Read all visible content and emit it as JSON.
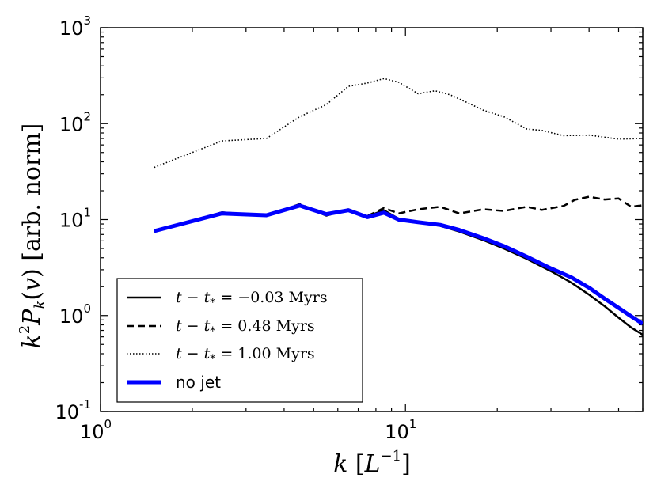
{
  "chart_data": {
    "type": "line",
    "title": "",
    "xlabel": "k [L^-1]",
    "ylabel": "k^2 P_k(v) [arb. norm]",
    "xscale": "log",
    "yscale": "log",
    "xlim": [
      1,
      60
    ],
    "ylim": [
      0.1,
      1000
    ],
    "x_ticks": [
      {
        "base": "10",
        "exp": "0",
        "value": 1
      },
      {
        "base": "10",
        "exp": "1",
        "value": 10
      }
    ],
    "y_ticks": [
      {
        "base": "10",
        "exp": "-1",
        "value": 0.1
      },
      {
        "base": "10",
        "exp": "0",
        "value": 1
      },
      {
        "base": "10",
        "exp": "1",
        "value": 10
      },
      {
        "base": "10",
        "exp": "2",
        "value": 100
      },
      {
        "base": "10",
        "exp": "3",
        "value": 1000
      }
    ],
    "legend_position": "lower-left",
    "series": [
      {
        "name": "t - t_* = -0.03 Myrs",
        "label_main": "t − t",
        "label_sub": "*",
        "label_rest": " = −0.03 Myrs",
        "color": "#000000",
        "style": "solid",
        "x": [
          1.5,
          2.5,
          3.5,
          4.5,
          5.5,
          6.5,
          7.5,
          8.5,
          9.5,
          11,
          13,
          15,
          18,
          21,
          25,
          30,
          35,
          40,
          45,
          50,
          55,
          60
        ],
        "y": [
          7.5,
          11.8,
          11.2,
          14.3,
          11.0,
          12.8,
          10.8,
          12.5,
          10.2,
          9.3,
          8.6,
          7.5,
          6.1,
          5.0,
          3.9,
          2.9,
          2.2,
          1.65,
          1.25,
          0.95,
          0.75,
          0.63
        ]
      },
      {
        "name": "t - t_* = 0.48 Myrs",
        "label_main": "t − t",
        "label_sub": "*",
        "label_rest": " = 0.48 Myrs",
        "color": "#000000",
        "style": "dashed",
        "x": [
          1.5,
          2.5,
          3.5,
          4.5,
          5.5,
          6.5,
          7.5,
          8.5,
          9.5,
          11,
          13,
          15,
          18,
          21,
          25,
          28,
          33,
          36,
          40,
          45,
          50,
          55,
          60
        ],
        "y": [
          7.6,
          11.9,
          11.0,
          14.5,
          11.2,
          12.4,
          10.9,
          13.2,
          11.6,
          12.8,
          13.6,
          11.6,
          12.8,
          12.3,
          13.6,
          12.6,
          13.9,
          16.1,
          17.3,
          16.2,
          16.6,
          13.6,
          14.1
        ]
      },
      {
        "name": "t - t_* = 1.00 Myrs",
        "label_main": "t − t",
        "label_sub": "*",
        "label_rest": " = 1.00 Myrs",
        "color": "#000000",
        "style": "dotted",
        "x": [
          1.5,
          2.5,
          3.5,
          4.5,
          5.5,
          6.5,
          7.5,
          8.5,
          9.5,
          11,
          12.5,
          14,
          16,
          18,
          21,
          25,
          28,
          33,
          40,
          50,
          60
        ],
        "y": [
          35,
          66,
          70,
          118,
          158,
          245,
          265,
          295,
          270,
          205,
          220,
          200,
          165,
          138,
          118,
          88,
          85,
          75,
          76,
          69,
          70
        ]
      },
      {
        "name": "no jet",
        "label_main": "no jet",
        "label_sub": "",
        "label_rest": "",
        "color": "#0000ff",
        "style": "solid-thick",
        "x": [
          1.5,
          2.5,
          3.5,
          4.5,
          5.5,
          6.5,
          7.5,
          8.5,
          9.5,
          11,
          13,
          15,
          18,
          21,
          25,
          30,
          35,
          40,
          45,
          50,
          55,
          60
        ],
        "y": [
          7.6,
          11.6,
          11.1,
          14.0,
          11.4,
          12.5,
          10.6,
          11.8,
          10.0,
          9.4,
          8.8,
          7.8,
          6.4,
          5.3,
          4.1,
          3.1,
          2.5,
          1.95,
          1.5,
          1.2,
          0.98,
          0.82
        ]
      }
    ]
  }
}
